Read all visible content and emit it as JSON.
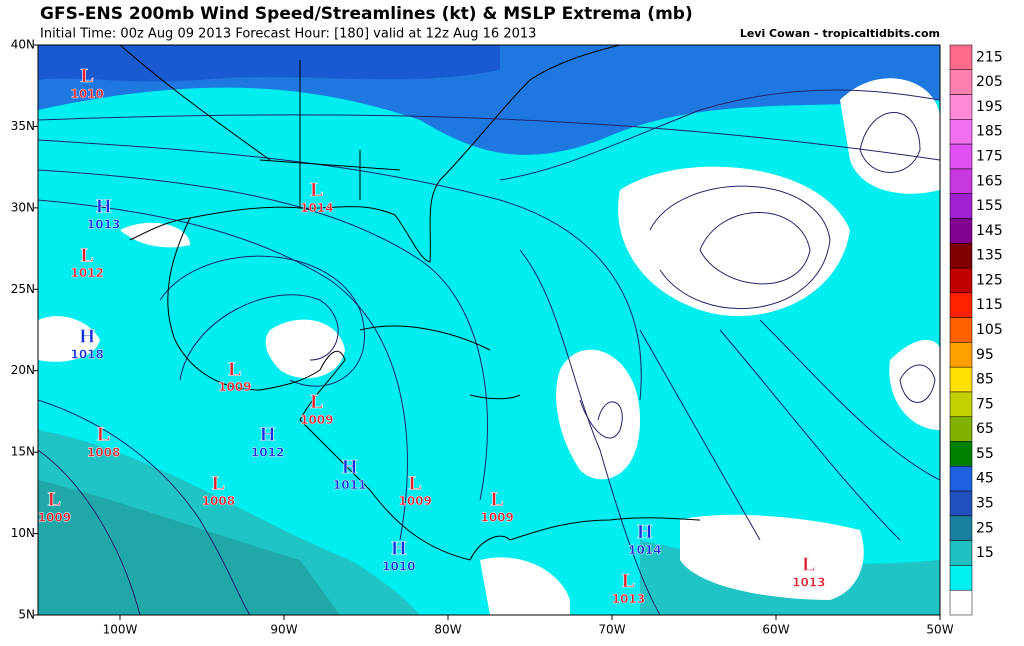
{
  "header": {
    "title": "GFS-ENS 200mb Wind Speed/Streamlines (kt) & MSLP Extrema (mb)",
    "subtitle": "Initial Time: 00z Aug 09 2013 Forecast Hour: [180] valid at 12z Aug 16 2013",
    "credit": "Levi Cowan - tropicaltidbits.com"
  },
  "map": {
    "lonlim": [
      -105,
      -50
    ],
    "latlim": [
      5,
      40
    ],
    "xticks": [
      {
        "value": -100,
        "label": "100W"
      },
      {
        "value": -90,
        "label": "90W"
      },
      {
        "value": -80,
        "label": "80W"
      },
      {
        "value": -70,
        "label": "70W"
      },
      {
        "value": -60,
        "label": "60W"
      },
      {
        "value": -50,
        "label": "50W"
      }
    ],
    "yticks": [
      {
        "value": 40,
        "label": "40N"
      },
      {
        "value": 35,
        "label": "35N"
      },
      {
        "value": 30,
        "label": "30N"
      },
      {
        "value": 25,
        "label": "25N"
      },
      {
        "value": 20,
        "label": "20N"
      },
      {
        "value": 15,
        "label": "15N"
      },
      {
        "value": 10,
        "label": "10N"
      },
      {
        "value": 5,
        "label": "5N"
      }
    ],
    "systems": [
      {
        "type": "L",
        "value": 1010,
        "lon": -102,
        "lat": 38
      },
      {
        "type": "H",
        "value": 1013,
        "lon": -101,
        "lat": 30
      },
      {
        "type": "L",
        "value": 1012,
        "lon": -102,
        "lat": 27
      },
      {
        "type": "H",
        "value": 1018,
        "lon": -102,
        "lat": 22
      },
      {
        "type": "L",
        "value": 1014,
        "lon": -88,
        "lat": 31
      },
      {
        "type": "L",
        "value": 1009,
        "lon": -93,
        "lat": 20
      },
      {
        "type": "L",
        "value": 1009,
        "lon": -88,
        "lat": 18
      },
      {
        "type": "L",
        "value": 1008,
        "lon": -101,
        "lat": 16
      },
      {
        "type": "H",
        "value": 1012,
        "lon": -91,
        "lat": 16
      },
      {
        "type": "H",
        "value": 1011,
        "lon": -86,
        "lat": 14
      },
      {
        "type": "L",
        "value": 1008,
        "lon": -94,
        "lat": 13
      },
      {
        "type": "L",
        "value": 1009,
        "lon": -82,
        "lat": 13
      },
      {
        "type": "L",
        "value": 1009,
        "lon": -104,
        "lat": 12
      },
      {
        "type": "L",
        "value": 1009,
        "lon": -77,
        "lat": 12
      },
      {
        "type": "H",
        "value": 1014,
        "lon": -68,
        "lat": 10
      },
      {
        "type": "H",
        "value": 1010,
        "lon": -83,
        "lat": 9
      },
      {
        "type": "L",
        "value": 1013,
        "lon": -69,
        "lat": 7
      },
      {
        "type": "L",
        "value": 1013,
        "lon": -58,
        "lat": 8
      }
    ],
    "low_color": "#e02030",
    "high_color": "#1030e0"
  },
  "colorbar": {
    "labels": [
      215,
      205,
      195,
      185,
      175,
      165,
      155,
      145,
      135,
      125,
      115,
      105,
      95,
      85,
      75,
      65,
      55,
      45,
      35,
      25,
      15
    ],
    "colors": [
      "#ff6a8a",
      "#ff80b0",
      "#ff88d8",
      "#f070f0",
      "#e050f0",
      "#c838e0",
      "#a020d0",
      "#800090",
      "#800000",
      "#c00000",
      "#ff2000",
      "#ff6000",
      "#ffa000",
      "#ffe000",
      "#c0d000",
      "#80b000",
      "#008000",
      "#1e60e0",
      "#2050c0",
      "#1a80a0",
      "#20c0c0",
      "#00f0f0",
      "#ffffff"
    ]
  }
}
